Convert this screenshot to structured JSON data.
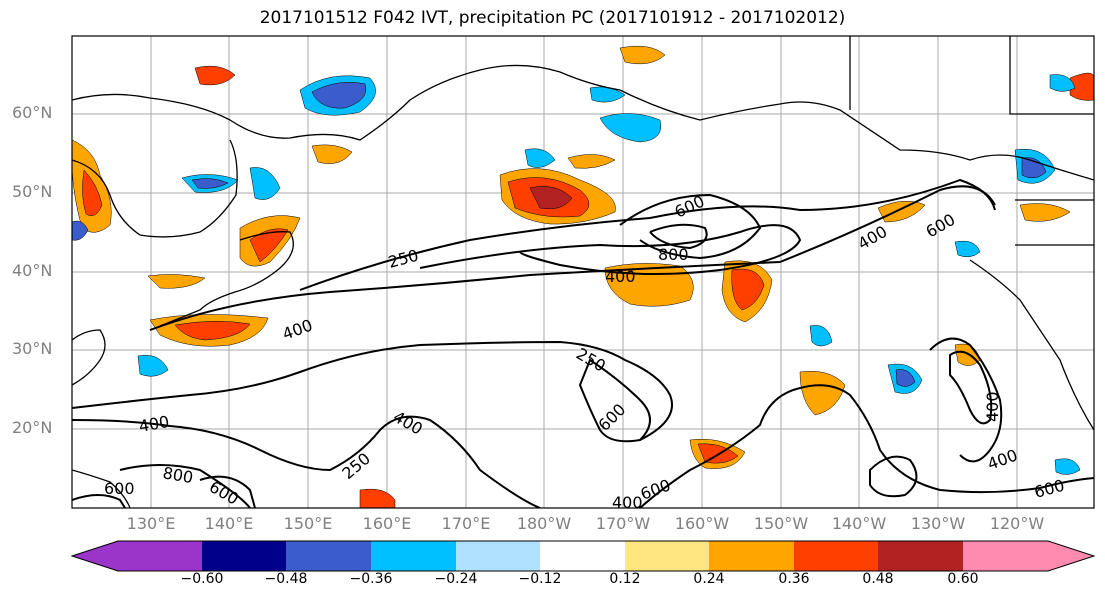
{
  "title": "2017101512 F042 IVT, precipitation PC (2017101912 - 2017102012)",
  "lat_labels": [
    "60°N",
    "50°N",
    "40°N",
    "30°N",
    "20°N"
  ],
  "lon_labels": [
    "130°E",
    "140°E",
    "150°E",
    "160°E",
    "170°E",
    "180°W",
    "170°W",
    "160°W",
    "150°W",
    "140°W",
    "130°W",
    "120°W"
  ],
  "contour_labels": [
    "250",
    "400",
    "600",
    "800",
    "400",
    "600",
    "400",
    "250",
    "400",
    "600",
    "400",
    "250",
    "800",
    "600",
    "400",
    "600",
    "600",
    "400",
    "600",
    "400",
    "600"
  ],
  "colorbar": {
    "colors": [
      "#9b34c8",
      "#00008b",
      "#3a5ccc",
      "#00bfff",
      "#b0e2ff",
      "#ffffff",
      "#ffe680",
      "#ffa500",
      "#ff3f00",
      "#b22222",
      "#ff8ab0"
    ],
    "tick_labels": [
      "−0.60",
      "−0.48",
      "−0.36",
      "−0.24",
      "−0.12",
      "0.12",
      "0.24",
      "0.36",
      "0.48",
      "0.60"
    ]
  }
}
